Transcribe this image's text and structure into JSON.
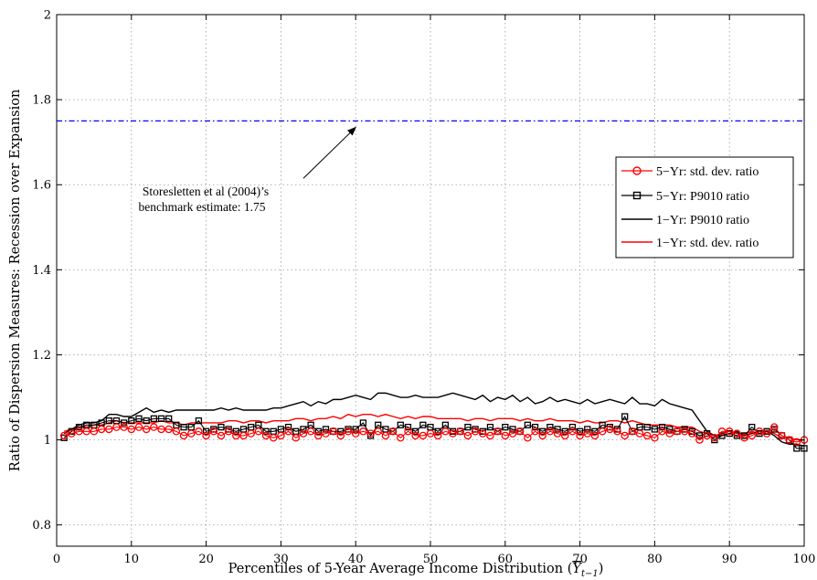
{
  "chart_data": {
    "type": "line",
    "xlabel": "Percentiles of 5-Year Average Income Distribution (",
    "xlabel_symbol": "Y",
    "xlabel_subscript": "t−1",
    "xlabel_close": ")",
    "ylabel": "Ratio of Dispersion Measures: Recession over Expansion",
    "xlim": [
      0,
      100
    ],
    "ylim": [
      0.75,
      2
    ],
    "xticks": [
      0,
      10,
      20,
      30,
      40,
      50,
      60,
      70,
      80,
      90,
      100
    ],
    "yticks": [
      0.8,
      1,
      1.2,
      1.4,
      1.6,
      1.8,
      2
    ],
    "ytick_labels": [
      "0.8",
      "1",
      "1.2",
      "1.4",
      "1.6",
      "1.8",
      "2"
    ],
    "grid": true,
    "legend_position": "right",
    "reference_line": {
      "y": 1.75,
      "color": "#0000ff",
      "style": "dash-dot"
    },
    "annotation": {
      "lines": [
        "Storesletten et al (2004)’s",
        "benchmark estimate: 1.75"
      ],
      "arrow_to": [
        40,
        1.75
      ],
      "arrow_from": [
        33,
        1.615
      ]
    },
    "series": [
      {
        "name": "5−Yr: std. dev. ratio",
        "color": "#ff0000",
        "marker": "circle",
        "x": [
          1,
          2,
          3,
          4,
          5,
          6,
          7,
          8,
          9,
          10,
          11,
          12,
          13,
          14,
          15,
          16,
          17,
          18,
          19,
          20,
          21,
          22,
          23,
          24,
          25,
          26,
          27,
          28,
          29,
          30,
          31,
          32,
          33,
          34,
          35,
          36,
          37,
          38,
          39,
          40,
          41,
          42,
          43,
          44,
          45,
          46,
          47,
          48,
          49,
          50,
          51,
          52,
          53,
          54,
          55,
          56,
          57,
          58,
          59,
          60,
          61,
          62,
          63,
          64,
          65,
          66,
          67,
          68,
          69,
          70,
          71,
          72,
          73,
          74,
          75,
          76,
          77,
          78,
          79,
          80,
          81,
          82,
          83,
          84,
          85,
          86,
          87,
          88,
          89,
          90,
          91,
          92,
          93,
          94,
          95,
          96,
          97,
          98,
          99,
          100
        ],
        "values": [
          1.01,
          1.015,
          1.02,
          1.02,
          1.02,
          1.025,
          1.025,
          1.03,
          1.03,
          1.025,
          1.03,
          1.025,
          1.03,
          1.025,
          1.025,
          1.02,
          1.01,
          1.015,
          1.02,
          1.01,
          1.02,
          1.01,
          1.02,
          1.01,
          1.01,
          1.015,
          1.02,
          1.01,
          1.005,
          1.01,
          1.02,
          1.005,
          1.015,
          1.02,
          1.01,
          1.015,
          1.02,
          1.01,
          1.02,
          1.015,
          1.02,
          1.015,
          1.02,
          1.01,
          1.02,
          1.005,
          1.02,
          1.01,
          1.01,
          1.015,
          1.01,
          1.02,
          1.015,
          1.02,
          1.01,
          1.02,
          1.015,
          1.01,
          1.02,
          1.01,
          1.015,
          1.02,
          1.005,
          1.02,
          1.01,
          1.02,
          1.015,
          1.01,
          1.02,
          1.01,
          1.015,
          1.01,
          1.02,
          1.025,
          1.02,
          1.01,
          1.02,
          1.015,
          1.01,
          1.005,
          1.02,
          1.015,
          1.02,
          1.02,
          1.015,
          1.0,
          1.01,
          1.005,
          1.02,
          1.02,
          1.015,
          1.005,
          1.01,
          1.02,
          1.015,
          1.03,
          1.01,
          1.0,
          0.995,
          1.0
        ]
      },
      {
        "name": "5−Yr: P9010 ratio",
        "color": "#000000",
        "marker": "square",
        "x": [
          1,
          2,
          3,
          4,
          5,
          6,
          7,
          8,
          9,
          10,
          11,
          12,
          13,
          14,
          15,
          16,
          17,
          18,
          19,
          20,
          21,
          22,
          23,
          24,
          25,
          26,
          27,
          28,
          29,
          30,
          31,
          32,
          33,
          34,
          35,
          36,
          37,
          38,
          39,
          40,
          41,
          42,
          43,
          44,
          45,
          46,
          47,
          48,
          49,
          50,
          51,
          52,
          53,
          54,
          55,
          56,
          57,
          58,
          59,
          60,
          61,
          62,
          63,
          64,
          65,
          66,
          67,
          68,
          69,
          70,
          71,
          72,
          73,
          74,
          75,
          76,
          77,
          78,
          79,
          80,
          81,
          82,
          83,
          84,
          85,
          86,
          87,
          88,
          89,
          90,
          91,
          92,
          93,
          94,
          95,
          96,
          97,
          98,
          99,
          100
        ],
        "values": [
          1.005,
          1.02,
          1.03,
          1.035,
          1.035,
          1.04,
          1.045,
          1.045,
          1.04,
          1.045,
          1.05,
          1.045,
          1.05,
          1.05,
          1.05,
          1.035,
          1.03,
          1.03,
          1.045,
          1.02,
          1.025,
          1.03,
          1.025,
          1.02,
          1.025,
          1.03,
          1.035,
          1.02,
          1.02,
          1.025,
          1.03,
          1.02,
          1.025,
          1.035,
          1.02,
          1.025,
          1.02,
          1.02,
          1.025,
          1.025,
          1.04,
          1.01,
          1.035,
          1.025,
          1.02,
          1.035,
          1.03,
          1.02,
          1.035,
          1.03,
          1.02,
          1.035,
          1.02,
          1.02,
          1.03,
          1.025,
          1.02,
          1.03,
          1.02,
          1.03,
          1.025,
          1.02,
          1.035,
          1.03,
          1.02,
          1.03,
          1.025,
          1.02,
          1.03,
          1.02,
          1.025,
          1.02,
          1.035,
          1.03,
          1.025,
          1.055,
          1.02,
          1.03,
          1.03,
          1.025,
          1.03,
          1.025,
          1.02,
          1.025,
          1.02,
          1.01,
          1.015,
          1.0,
          1.01,
          1.015,
          1.01,
          1.01,
          1.03,
          1.015,
          1.02,
          1.025,
          1.01,
          1.0,
          0.98,
          0.98
        ]
      },
      {
        "name": "1−Yr: P9010 ratio",
        "color": "#000000",
        "marker": "none",
        "x": [
          1,
          2,
          3,
          4,
          5,
          6,
          7,
          8,
          9,
          10,
          11,
          12,
          13,
          14,
          15,
          16,
          17,
          18,
          19,
          20,
          21,
          22,
          23,
          24,
          25,
          26,
          27,
          28,
          29,
          30,
          31,
          32,
          33,
          34,
          35,
          36,
          37,
          38,
          39,
          40,
          41,
          42,
          43,
          44,
          45,
          46,
          47,
          48,
          49,
          50,
          51,
          52,
          53,
          54,
          55,
          56,
          57,
          58,
          59,
          60,
          61,
          62,
          63,
          64,
          65,
          66,
          67,
          68,
          69,
          70,
          71,
          72,
          73,
          74,
          75,
          76,
          77,
          78,
          79,
          80,
          81,
          82,
          83,
          84,
          85,
          86,
          87,
          88,
          89,
          90,
          91,
          92,
          93,
          94,
          95,
          96,
          97,
          98,
          99,
          100
        ],
        "values": [
          1.015,
          1.025,
          1.035,
          1.04,
          1.04,
          1.045,
          1.06,
          1.06,
          1.055,
          1.055,
          1.065,
          1.075,
          1.065,
          1.07,
          1.065,
          1.07,
          1.07,
          1.07,
          1.07,
          1.07,
          1.07,
          1.075,
          1.07,
          1.075,
          1.07,
          1.07,
          1.07,
          1.07,
          1.075,
          1.075,
          1.08,
          1.085,
          1.09,
          1.08,
          1.09,
          1.085,
          1.095,
          1.095,
          1.1,
          1.105,
          1.1,
          1.095,
          1.11,
          1.11,
          1.105,
          1.1,
          1.1,
          1.105,
          1.1,
          1.1,
          1.1,
          1.105,
          1.11,
          1.105,
          1.1,
          1.095,
          1.105,
          1.09,
          1.1,
          1.095,
          1.105,
          1.09,
          1.1,
          1.085,
          1.09,
          1.1,
          1.09,
          1.095,
          1.09,
          1.085,
          1.095,
          1.085,
          1.09,
          1.095,
          1.09,
          1.085,
          1.1,
          1.085,
          1.085,
          1.08,
          1.095,
          1.085,
          1.08,
          1.075,
          1.07,
          1.045,
          1.02,
          1.01,
          1.01,
          1.015,
          1.02,
          1.01,
          1.015,
          1.02,
          1.02,
          1.01,
          0.995,
          0.99,
          0.99,
          0.985
        ]
      },
      {
        "name": "1−Yr: std. dev. ratio",
        "color": "#ff0000",
        "marker": "none",
        "x": [
          1,
          2,
          3,
          4,
          5,
          6,
          7,
          8,
          9,
          10,
          11,
          12,
          13,
          14,
          15,
          16,
          17,
          18,
          19,
          20,
          21,
          22,
          23,
          24,
          25,
          26,
          27,
          28,
          29,
          30,
          31,
          32,
          33,
          34,
          35,
          36,
          37,
          38,
          39,
          40,
          41,
          42,
          43,
          44,
          45,
          46,
          47,
          48,
          49,
          50,
          51,
          52,
          53,
          54,
          55,
          56,
          57,
          58,
          59,
          60,
          61,
          62,
          63,
          64,
          65,
          66,
          67,
          68,
          69,
          70,
          71,
          72,
          73,
          74,
          75,
          76,
          77,
          78,
          79,
          80,
          81,
          82,
          83,
          84,
          85,
          86,
          87,
          88,
          89,
          90,
          91,
          92,
          93,
          94,
          95,
          96,
          97,
          98,
          99,
          100
        ],
        "values": [
          1.02,
          1.025,
          1.03,
          1.03,
          1.035,
          1.035,
          1.04,
          1.045,
          1.04,
          1.04,
          1.04,
          1.04,
          1.04,
          1.045,
          1.04,
          1.04,
          1.035,
          1.04,
          1.04,
          1.04,
          1.04,
          1.04,
          1.045,
          1.045,
          1.04,
          1.045,
          1.045,
          1.04,
          1.045,
          1.045,
          1.045,
          1.05,
          1.05,
          1.045,
          1.05,
          1.05,
          1.055,
          1.05,
          1.06,
          1.055,
          1.06,
          1.06,
          1.055,
          1.06,
          1.055,
          1.05,
          1.055,
          1.05,
          1.055,
          1.055,
          1.05,
          1.05,
          1.05,
          1.05,
          1.045,
          1.05,
          1.05,
          1.045,
          1.05,
          1.05,
          1.05,
          1.045,
          1.05,
          1.045,
          1.045,
          1.05,
          1.045,
          1.045,
          1.045,
          1.04,
          1.045,
          1.04,
          1.04,
          1.045,
          1.045,
          1.04,
          1.045,
          1.04,
          1.035,
          1.035,
          1.035,
          1.035,
          1.03,
          1.03,
          1.03,
          1.02,
          1.015,
          1.01,
          1.015,
          1.02,
          1.015,
          1.015,
          1.02,
          1.015,
          1.02,
          1.015,
          1.005,
          1.005,
          1.0,
          1.0
        ]
      }
    ]
  }
}
